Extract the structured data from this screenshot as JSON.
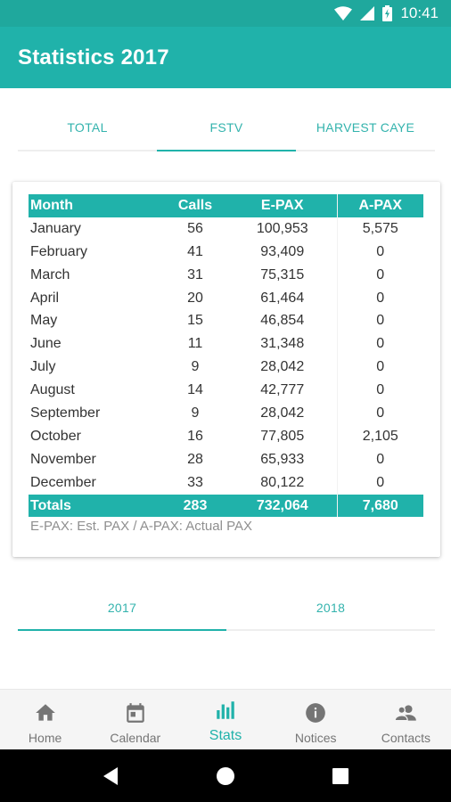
{
  "status_bar": {
    "time": "10:41",
    "icons": [
      "wifi-icon",
      "signal-icon",
      "battery-icon"
    ]
  },
  "app_bar": {
    "title": "Statistics 2017",
    "color": "#20b2aa"
  },
  "top_tabs": [
    {
      "label": "TOTAL",
      "active": false
    },
    {
      "label": "FSTV",
      "active": true
    },
    {
      "label": "HARVEST CAYE",
      "active": false
    }
  ],
  "table": {
    "headers": {
      "month": "Month",
      "calls": "Calls",
      "epax": "E-PAX",
      "apax": "A-PAX"
    },
    "rows": [
      {
        "month": "January",
        "calls": "56",
        "epax": "100,953",
        "apax": "5,575"
      },
      {
        "month": "February",
        "calls": "41",
        "epax": "93,409",
        "apax": "0"
      },
      {
        "month": "March",
        "calls": "31",
        "epax": "75,315",
        "apax": "0"
      },
      {
        "month": "April",
        "calls": "20",
        "epax": "61,464",
        "apax": "0"
      },
      {
        "month": "May",
        "calls": "15",
        "epax": "46,854",
        "apax": "0"
      },
      {
        "month": "June",
        "calls": "11",
        "epax": "31,348",
        "apax": "0"
      },
      {
        "month": "July",
        "calls": "9",
        "epax": "28,042",
        "apax": "0"
      },
      {
        "month": "August",
        "calls": "14",
        "epax": "42,777",
        "apax": "0"
      },
      {
        "month": "September",
        "calls": "9",
        "epax": "28,042",
        "apax": "0"
      },
      {
        "month": "October",
        "calls": "16",
        "epax": "77,805",
        "apax": "2,105"
      },
      {
        "month": "November",
        "calls": "28",
        "epax": "65,933",
        "apax": "0"
      },
      {
        "month": "December",
        "calls": "33",
        "epax": "80,122",
        "apax": "0"
      }
    ],
    "totals": {
      "label": "Totals",
      "calls": "283",
      "epax": "732,064",
      "apax": "7,680"
    },
    "note": "E-PAX: Est. PAX / A-PAX: Actual PAX"
  },
  "year_tabs": [
    {
      "label": "2017",
      "active": true
    },
    {
      "label": "2018",
      "active": false
    }
  ],
  "bottom_nav": [
    {
      "label": "Home",
      "icon": "home-icon",
      "active": false
    },
    {
      "label": "Calendar",
      "icon": "calendar-icon",
      "active": false
    },
    {
      "label": "Stats",
      "icon": "bar-chart-icon",
      "active": true
    },
    {
      "label": "Notices",
      "icon": "info-icon",
      "active": false
    },
    {
      "label": "Contacts",
      "icon": "contacts-icon",
      "active": false
    }
  ],
  "system_nav": [
    "back-icon",
    "home-circle-icon",
    "recents-icon"
  ]
}
